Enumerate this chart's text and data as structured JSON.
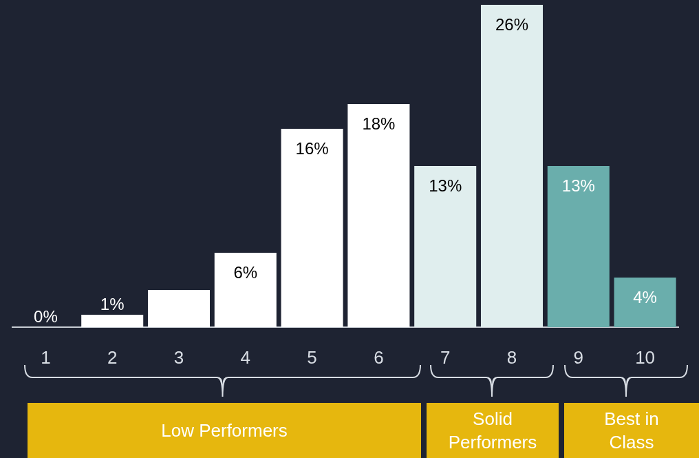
{
  "chart_data": {
    "type": "bar",
    "categories": [
      "1",
      "2",
      "3",
      "4",
      "5",
      "6",
      "7",
      "8",
      "9",
      "10"
    ],
    "values": [
      0,
      1,
      3,
      6,
      16,
      18,
      13,
      26,
      13,
      4
    ],
    "colors": [
      "#ffffff",
      "#ffffff",
      "#ffffff",
      "#ffffff",
      "#ffffff",
      "#ffffff",
      "#e0eeee",
      "#e0eeee",
      "#6aaeac",
      "#6aaeac"
    ],
    "value_labels": [
      "0%",
      "1%",
      null,
      "6%",
      "16%",
      "18%",
      "13%",
      "26%",
      "13%",
      "4%"
    ],
    "annotations": [
      "Low Performers",
      "Solid Performers",
      "Best in Class"
    ],
    "grid": false,
    "legend": false
  }
}
